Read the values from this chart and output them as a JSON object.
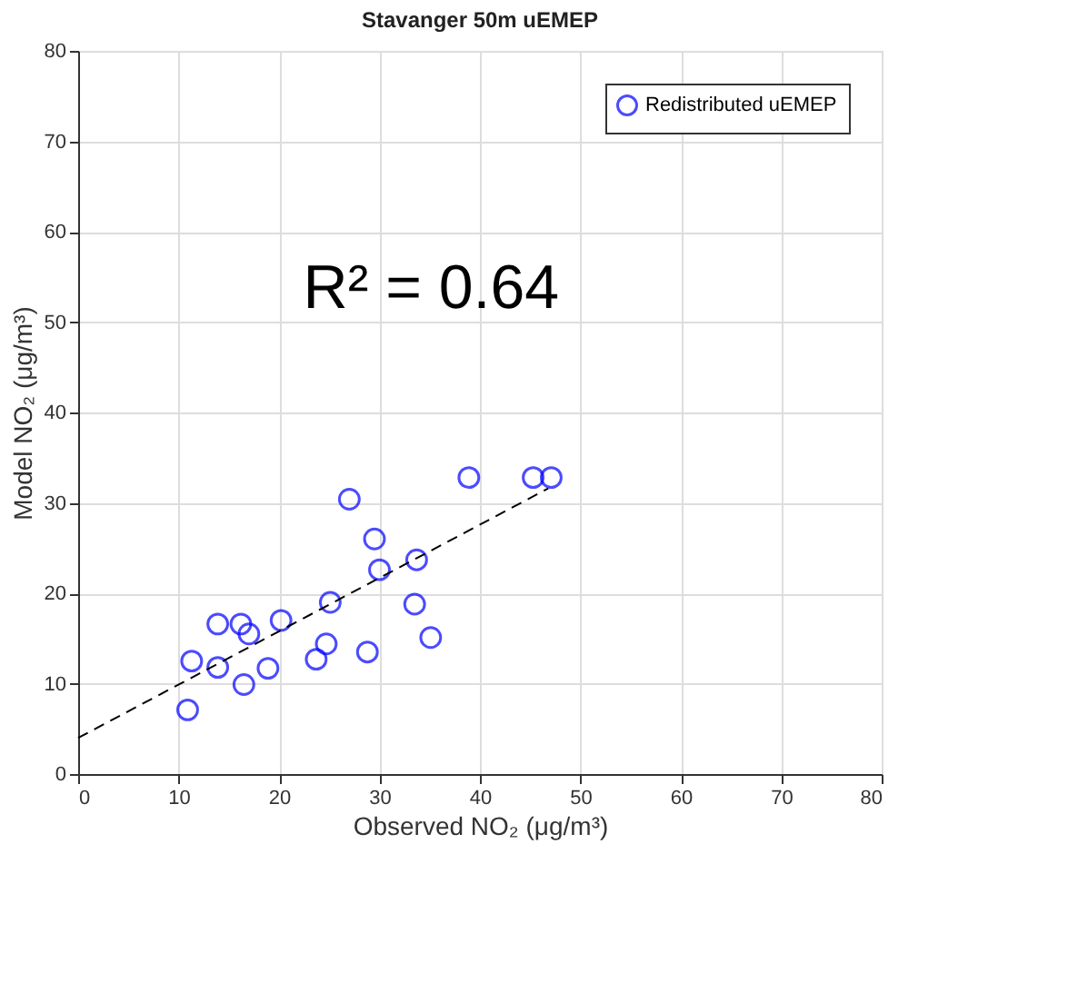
{
  "chart_data": {
    "type": "scatter",
    "title": "Stavanger 50m uEMEP",
    "xlabel": "Observed NO₂ (μg/m³)",
    "ylabel": "Model NO₂ (μg/m³)",
    "annotations": [
      "R² = 0.64"
    ],
    "series": [
      {
        "name": "Redistributed uEMEP",
        "color": "#0000ff",
        "marker": "circle",
        "x": [
          10.9,
          11.3,
          13.9,
          13.9,
          16.2,
          17.0,
          16.5,
          18.9,
          20.2,
          23.7,
          24.7,
          25.1,
          27.0,
          28.8,
          29.5,
          30.0,
          33.7,
          33.5,
          35.1,
          38.9,
          45.3,
          47.1
        ],
        "values": [
          7.1,
          12.5,
          16.6,
          11.8,
          16.6,
          15.5,
          9.9,
          11.7,
          17.0,
          12.7,
          14.4,
          19.0,
          30.4,
          13.5,
          26.0,
          22.6,
          23.7,
          18.8,
          15.1,
          32.8,
          32.8,
          32.8
        ]
      },
      {
        "type": "line",
        "color": "#000000",
        "line_style": "dashed",
        "x": [
          0,
          46.8
        ],
        "values": [
          4.0,
          31.6
        ]
      }
    ],
    "xlim": [
      0,
      80
    ],
    "ylim": [
      0,
      80
    ],
    "xticks": [
      0,
      10,
      20,
      30,
      40,
      50,
      60,
      70,
      80
    ],
    "yticks": [
      0,
      10,
      20,
      30,
      40,
      50,
      60,
      70,
      80
    ],
    "grid": true,
    "legend": "top right"
  }
}
